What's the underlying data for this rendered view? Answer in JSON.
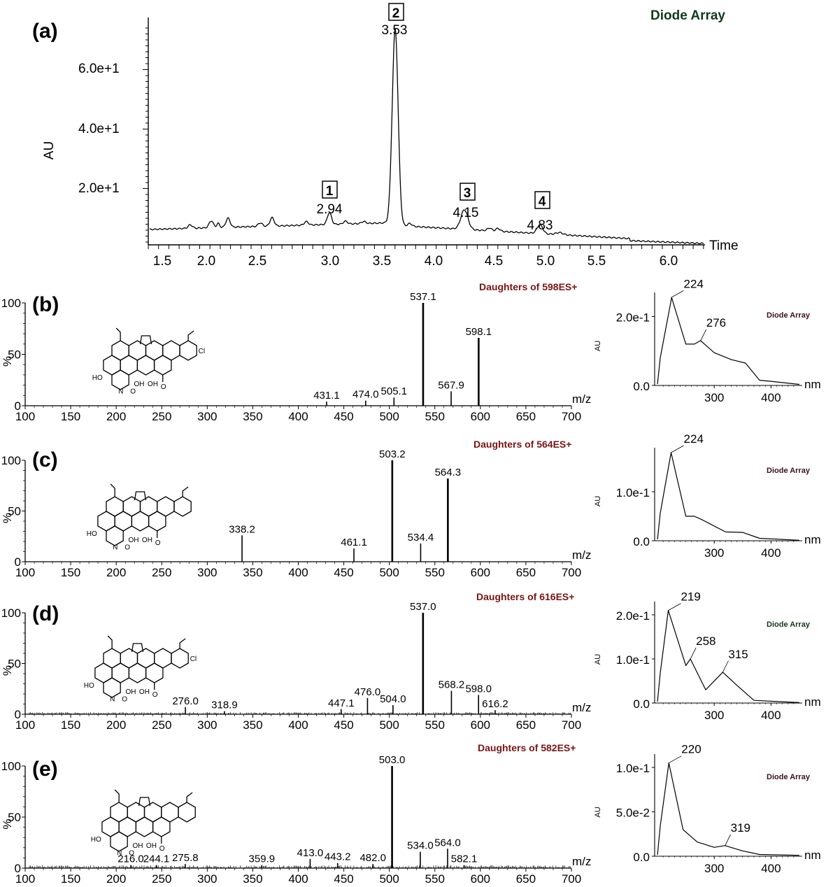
{
  "panel_a": {
    "label": "(a)",
    "title": "Diode Array",
    "ylabel": "AU",
    "xlabel": "Time",
    "yticks": [
      "2.0e+1",
      "4.0e+1",
      "6.0e+1"
    ],
    "xticks": [
      "1.5",
      "2.0",
      "2.5",
      "3.0",
      "3.5",
      "4.0",
      "4.5",
      "5.0",
      "5.5",
      "6.0"
    ],
    "peaks": [
      {
        "num": "1",
        "rt": "2.94"
      },
      {
        "num": "2",
        "rt": "3.53"
      },
      {
        "num": "3",
        "rt": "4.15"
      },
      {
        "num": "4",
        "rt": "4.83"
      }
    ]
  },
  "ms_axis": {
    "xticks": [
      "100",
      "150",
      "200",
      "250",
      "300",
      "350",
      "400",
      "450",
      "500",
      "550",
      "600",
      "650",
      "700"
    ],
    "xunit": "m/z",
    "yticks": [
      "0",
      "50",
      "100"
    ],
    "ylabel": "%"
  },
  "uv_axis": {
    "ylabel": "AU",
    "xunit": "nm",
    "xticks": [
      "300",
      "400"
    ],
    "title": "Diode Array"
  },
  "structure": {
    "oh": "OH",
    "o": "O",
    "n": "N",
    "ho": "HO",
    "cl": "Cl"
  },
  "chart_data": [
    {
      "type": "line",
      "title": "Diode Array",
      "xlabel": "Time",
      "ylabel": "AU",
      "xlim": [
        1.3,
        6.3
      ],
      "ylim": [
        0,
        73
      ],
      "peaks": [
        {
          "label": "1",
          "x": 2.94,
          "y": 7
        },
        {
          "label": "2",
          "x": 3.53,
          "y": 67
        },
        {
          "label": "3",
          "x": 4.15,
          "y": 5
        },
        {
          "label": "4",
          "x": 4.83,
          "y": 2
        }
      ]
    },
    {
      "type": "bar",
      "panel": "(b)",
      "title": "Daughters of 598ES+",
      "xlabel": "m/z",
      "ylabel": "%",
      "xlim": [
        100,
        700
      ],
      "ylim": [
        0,
        100
      ],
      "peaks": [
        {
          "mz": 431.1,
          "y": 4
        },
        {
          "mz": 474.0,
          "y": 5
        },
        {
          "mz": 505.1,
          "y": 8
        },
        {
          "mz": 537.1,
          "y": 100
        },
        {
          "mz": 567.9,
          "y": 14
        },
        {
          "mz": 598.1,
          "y": 66
        }
      ],
      "peak_labels": [
        "431.1",
        "474.0",
        "505.1",
        "537.1",
        "567.9",
        "598.1"
      ],
      "uv": {
        "title": "Diode Array",
        "yticks": [
          "0.0",
          "2.0e-1"
        ],
        "ylim": [
          0,
          0.27
        ],
        "maxima": [
          {
            "nm": 224,
            "au": 0.255,
            "label": "224"
          },
          {
            "nm": 276,
            "au": 0.13,
            "label": "276"
          }
        ]
      }
    },
    {
      "type": "bar",
      "panel": "(c)",
      "title": "Daughters of 564ES+",
      "xlabel": "m/z",
      "ylabel": "%",
      "xlim": [
        100,
        700
      ],
      "ylim": [
        0,
        100
      ],
      "peaks": [
        {
          "mz": 338.2,
          "y": 26
        },
        {
          "mz": 461.1,
          "y": 13
        },
        {
          "mz": 503.2,
          "y": 100
        },
        {
          "mz": 534.4,
          "y": 18
        },
        {
          "mz": 564.3,
          "y": 82
        }
      ],
      "peak_labels": [
        "338.2",
        "461.1",
        "503.2",
        "534.4",
        "564.3"
      ],
      "uv": {
        "title": "Diode Array",
        "yticks": [
          "0.0",
          "1.0e-1"
        ],
        "ylim": [
          0,
          0.19
        ],
        "maxima": [
          {
            "nm": 224,
            "au": 0.18,
            "label": "224"
          }
        ]
      }
    },
    {
      "type": "bar",
      "panel": "(d)",
      "title": "Daughters of 616ES+",
      "xlabel": "m/z",
      "ylabel": "%",
      "xlim": [
        100,
        700
      ],
      "ylim": [
        0,
        100
      ],
      "peaks": [
        {
          "mz": 276.0,
          "y": 7
        },
        {
          "mz": 318.9,
          "y": 3
        },
        {
          "mz": 447.1,
          "y": 5
        },
        {
          "mz": 476.0,
          "y": 16
        },
        {
          "mz": 504.0,
          "y": 9
        },
        {
          "mz": 537.0,
          "y": 100
        },
        {
          "mz": 568.2,
          "y": 23
        },
        {
          "mz": 598.0,
          "y": 19
        },
        {
          "mz": 616.2,
          "y": 4
        }
      ],
      "peak_labels": [
        "276.0",
        "318.9",
        "447.1",
        "476.0",
        "504.0",
        "537.0",
        "568.2",
        "598.0",
        "616.2"
      ],
      "uv": {
        "title": "Diode Array",
        "yticks": [
          "0.0",
          "1.0e-1",
          "2.0e-1"
        ],
        "ylim": [
          0,
          0.23
        ],
        "maxima": [
          {
            "nm": 219,
            "au": 0.21,
            "label": "219"
          },
          {
            "nm": 258,
            "au": 0.1,
            "label": "258"
          },
          {
            "nm": 315,
            "au": 0.07,
            "label": "315"
          }
        ]
      }
    },
    {
      "type": "bar",
      "panel": "(e)",
      "title": "Daughters of 582ES+",
      "xlabel": "m/z",
      "ylabel": "%",
      "xlim": [
        100,
        700
      ],
      "ylim": [
        0,
        100
      ],
      "peaks": [
        {
          "mz": 216.0,
          "y": 3
        },
        {
          "mz": 244.1,
          "y": 3
        },
        {
          "mz": 275.8,
          "y": 4
        },
        {
          "mz": 359.9,
          "y": 3
        },
        {
          "mz": 413.0,
          "y": 9
        },
        {
          "mz": 443.2,
          "y": 5
        },
        {
          "mz": 482.0,
          "y": 4
        },
        {
          "mz": 503.0,
          "y": 100
        },
        {
          "mz": 534.0,
          "y": 16
        },
        {
          "mz": 564.0,
          "y": 19
        },
        {
          "mz": 582.1,
          "y": 3
        }
      ],
      "peak_labels": [
        "216.0",
        "244.1",
        "275.8",
        "359.9",
        "413.0",
        "443.2",
        "482.0",
        "503.0",
        "534.0",
        "564.0",
        "582.1"
      ],
      "uv": {
        "title": "Diode Array",
        "yticks": [
          "0.0",
          "5.0e-2",
          "1.0e-1"
        ],
        "ylim": [
          0,
          0.115
        ],
        "maxima": [
          {
            "nm": 220,
            "au": 0.105,
            "label": "220"
          },
          {
            "nm": 319,
            "au": 0.012,
            "label": "319"
          }
        ]
      }
    }
  ]
}
